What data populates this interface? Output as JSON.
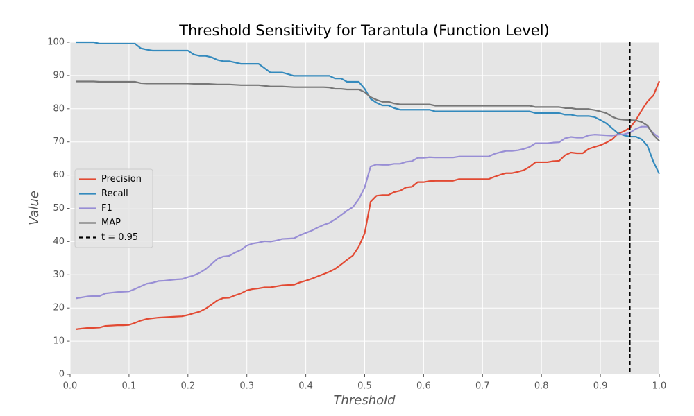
{
  "chart_data": {
    "type": "line",
    "title": "Threshold Sensitivity for Tarantula (Function Level)",
    "x_label": "Threshold",
    "y_label": "Value",
    "x": [
      0.01,
      0.02,
      0.03,
      0.04,
      0.05,
      0.06,
      0.07,
      0.08,
      0.09,
      0.1,
      0.11,
      0.12,
      0.13,
      0.14,
      0.15,
      0.16,
      0.17,
      0.18,
      0.19,
      0.2,
      0.21,
      0.22,
      0.23,
      0.24,
      0.25,
      0.26,
      0.27,
      0.28,
      0.29,
      0.3,
      0.31,
      0.32,
      0.33,
      0.34,
      0.35,
      0.36,
      0.37,
      0.38,
      0.39,
      0.4,
      0.41,
      0.42,
      0.43,
      0.44,
      0.45,
      0.46,
      0.47,
      0.48,
      0.49,
      0.5,
      0.51,
      0.52,
      0.53,
      0.54,
      0.55,
      0.56,
      0.57,
      0.58,
      0.59,
      0.6,
      0.61,
      0.62,
      0.63,
      0.64,
      0.65,
      0.66,
      0.67,
      0.68,
      0.69,
      0.7,
      0.71,
      0.72,
      0.73,
      0.74,
      0.75,
      0.76,
      0.77,
      0.78,
      0.79,
      0.8,
      0.81,
      0.82,
      0.83,
      0.84,
      0.85,
      0.86,
      0.87,
      0.88,
      0.89,
      0.9,
      0.91,
      0.92,
      0.93,
      0.94,
      0.95,
      0.96,
      0.97,
      0.98,
      0.99,
      1.0
    ],
    "series": [
      {
        "name": "Precision",
        "color": "#E24A33",
        "values": [
          13.6,
          13.8,
          14.0,
          14.0,
          14.1,
          14.6,
          14.7,
          14.8,
          14.8,
          14.9,
          15.5,
          16.2,
          16.7,
          16.9,
          17.1,
          17.2,
          17.3,
          17.4,
          17.5,
          17.9,
          18.4,
          18.9,
          19.8,
          21.0,
          22.3,
          23.0,
          23.1,
          23.8,
          24.4,
          25.3,
          25.7,
          25.9,
          26.2,
          26.2,
          26.5,
          26.8,
          26.9,
          27.0,
          27.7,
          28.2,
          28.8,
          29.5,
          30.2,
          30.9,
          31.8,
          33.1,
          34.5,
          35.8,
          38.5,
          42.5,
          52.0,
          53.8,
          54.0,
          54.0,
          54.9,
          55.3,
          56.3,
          56.5,
          57.9,
          57.9,
          58.2,
          58.3,
          58.3,
          58.3,
          58.3,
          58.8,
          58.8,
          58.8,
          58.8,
          58.8,
          58.8,
          59.5,
          60.1,
          60.6,
          60.6,
          61.0,
          61.5,
          62.5,
          63.9,
          63.9,
          63.9,
          64.2,
          64.3,
          66.0,
          66.8,
          66.6,
          66.6,
          67.9,
          68.5,
          69.0,
          69.8,
          70.8,
          72.5,
          73.2,
          74.2,
          76.5,
          79.5,
          82.2,
          84.0,
          88.3
        ]
      },
      {
        "name": "Recall",
        "color": "#348ABD",
        "values": [
          100,
          100,
          100,
          100,
          99.6,
          99.6,
          99.6,
          99.6,
          99.6,
          99.6,
          99.6,
          98.2,
          97.8,
          97.5,
          97.5,
          97.5,
          97.5,
          97.5,
          97.5,
          97.5,
          96.3,
          95.9,
          95.9,
          95.5,
          94.7,
          94.3,
          94.3,
          93.9,
          93.5,
          93.5,
          93.5,
          93.5,
          92.2,
          90.9,
          90.9,
          90.9,
          90.4,
          89.9,
          89.9,
          89.9,
          89.9,
          89.9,
          89.9,
          89.9,
          89.1,
          89.1,
          88.1,
          88.1,
          88.1,
          86.0,
          83.0,
          81.8,
          81.0,
          81.0,
          80.2,
          79.7,
          79.7,
          79.7,
          79.7,
          79.7,
          79.7,
          79.2,
          79.2,
          79.2,
          79.2,
          79.2,
          79.2,
          79.2,
          79.2,
          79.2,
          79.2,
          79.2,
          79.2,
          79.2,
          79.2,
          79.2,
          79.2,
          79.2,
          78.7,
          78.7,
          78.7,
          78.7,
          78.7,
          78.2,
          78.2,
          77.8,
          77.8,
          77.8,
          77.5,
          76.6,
          75.6,
          74.1,
          72.6,
          72.0,
          71.6,
          71.6,
          70.8,
          68.8,
          64.0,
          60.4
        ]
      },
      {
        "name": "F1",
        "color": "#988ED5",
        "values": [
          22.9,
          23.2,
          23.5,
          23.6,
          23.6,
          24.4,
          24.6,
          24.8,
          24.9,
          25.0,
          25.7,
          26.5,
          27.3,
          27.6,
          28.1,
          28.2,
          28.4,
          28.6,
          28.7,
          29.3,
          29.8,
          30.6,
          31.7,
          33.2,
          34.8,
          35.5,
          35.7,
          36.7,
          37.5,
          38.8,
          39.4,
          39.7,
          40.1,
          40.0,
          40.3,
          40.8,
          40.9,
          41.0,
          41.9,
          42.6,
          43.3,
          44.2,
          45.0,
          45.6,
          46.7,
          48.0,
          49.3,
          50.4,
          52.8,
          56.3,
          62.6,
          63.2,
          63.1,
          63.1,
          63.4,
          63.4,
          64.0,
          64.2,
          65.2,
          65.2,
          65.4,
          65.3,
          65.3,
          65.3,
          65.3,
          65.6,
          65.6,
          65.6,
          65.6,
          65.6,
          65.6,
          66.4,
          66.9,
          67.3,
          67.3,
          67.5,
          67.9,
          68.5,
          69.6,
          69.6,
          69.6,
          69.8,
          69.9,
          71.1,
          71.5,
          71.3,
          71.3,
          72.0,
          72.2,
          72.1,
          72.0,
          71.9,
          72.2,
          72.3,
          72.8,
          73.9,
          74.6,
          74.6,
          72.6,
          71.3
        ]
      },
      {
        "name": "MAP",
        "color": "#777777",
        "values": [
          88.2,
          88.2,
          88.2,
          88.2,
          88.1,
          88.1,
          88.1,
          88.1,
          88.1,
          88.1,
          88.1,
          87.7,
          87.6,
          87.6,
          87.6,
          87.6,
          87.6,
          87.6,
          87.6,
          87.6,
          87.5,
          87.5,
          87.5,
          87.4,
          87.3,
          87.3,
          87.3,
          87.2,
          87.1,
          87.1,
          87.1,
          87.1,
          86.9,
          86.7,
          86.7,
          86.7,
          86.6,
          86.5,
          86.5,
          86.5,
          86.5,
          86.5,
          86.5,
          86.4,
          86.0,
          86.0,
          85.8,
          85.8,
          85.8,
          85.0,
          83.5,
          82.7,
          82.1,
          82.1,
          81.6,
          81.3,
          81.3,
          81.3,
          81.3,
          81.3,
          81.3,
          80.9,
          80.9,
          80.9,
          80.9,
          80.9,
          80.9,
          80.9,
          80.9,
          80.9,
          80.9,
          80.9,
          80.9,
          80.9,
          80.9,
          80.9,
          80.9,
          80.9,
          80.5,
          80.5,
          80.5,
          80.5,
          80.5,
          80.2,
          80.2,
          79.9,
          79.9,
          79.9,
          79.6,
          79.2,
          78.7,
          77.6,
          76.9,
          76.7,
          76.6,
          76.5,
          76.0,
          74.9,
          72.1,
          70.3
        ]
      }
    ],
    "vline": {
      "x": 0.95,
      "label": "t = 0.95",
      "color": "#000000",
      "style": "dashed"
    },
    "xlim": [
      0,
      1
    ],
    "ylim": [
      0,
      100
    ],
    "xticks": [
      {
        "value": 0,
        "label": "0.0"
      },
      0.1,
      0.2,
      0.3,
      0.4,
      0.5,
      0.6,
      0.7,
      0.8,
      0.9,
      {
        "value": 1,
        "label": "1.0"
      }
    ],
    "yticks": [
      0,
      10,
      20,
      30,
      40,
      50,
      60,
      70,
      80,
      90,
      100
    ],
    "grid": true,
    "legend": "center left"
  }
}
